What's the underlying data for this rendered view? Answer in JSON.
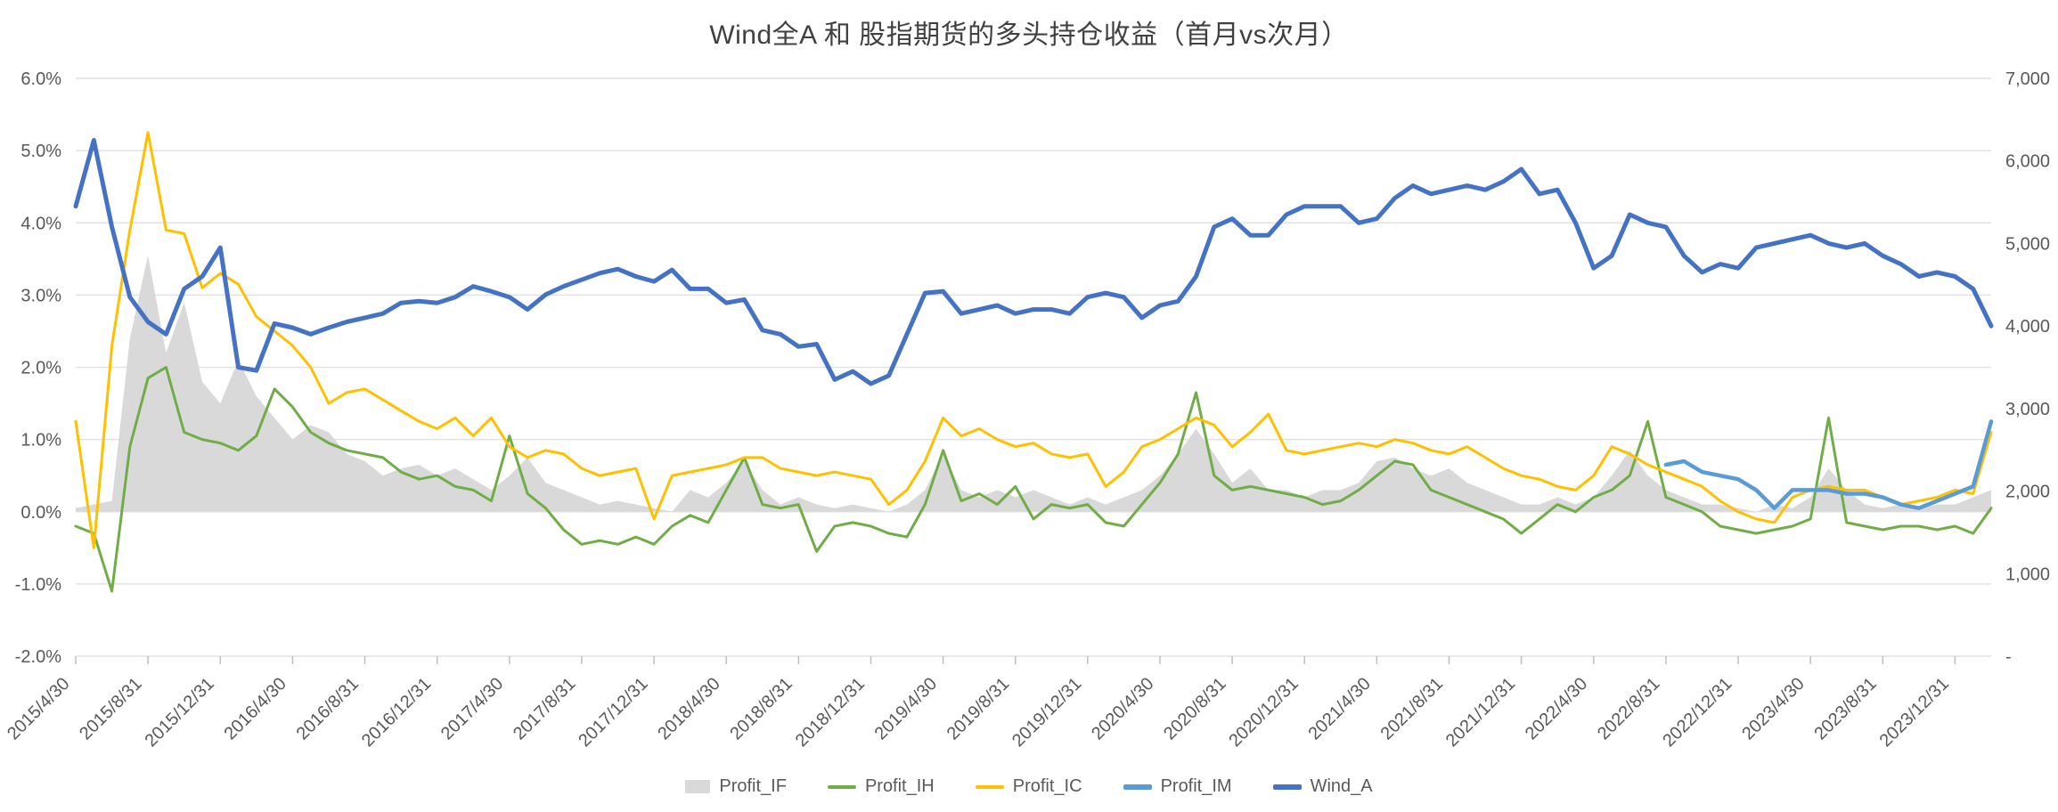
{
  "chart_data": {
    "type": "line",
    "title": "Wind全A 和 股指期货的多头持仓收益（首月vs次月）",
    "legend_position": "bottom",
    "grid": "horizontal",
    "left_axis": {
      "min": -2,
      "max": 6,
      "format": "percent",
      "tick_labels": [
        "6.0%",
        "5.0%",
        "4.0%",
        "3.0%",
        "2.0%",
        "1.0%",
        "0.0%",
        "-1.0%",
        "-2.0%"
      ],
      "tick_values": [
        6,
        5,
        4,
        3,
        2,
        1,
        0,
        -1,
        -2
      ]
    },
    "right_axis": {
      "min": 0,
      "max": 7000,
      "tick_labels": [
        "7,000",
        "6,000",
        "5,000",
        "4,000",
        "3,000",
        "2,000",
        "1,000",
        "-"
      ],
      "tick_values": [
        7000,
        6000,
        5000,
        4000,
        3000,
        2000,
        1000,
        0
      ]
    },
    "x_tick_labels": [
      "2015/4/30",
      "2015/8/31",
      "2015/12/31",
      "2016/4/30",
      "2016/8/31",
      "2016/12/31",
      "2017/4/30",
      "2017/8/31",
      "2017/12/31",
      "2018/4/30",
      "2018/8/31",
      "2018/12/31",
      "2019/4/30",
      "2019/8/31",
      "2019/12/31",
      "2020/4/30",
      "2020/8/31",
      "2020/12/31",
      "2021/4/30",
      "2021/8/31",
      "2021/12/31",
      "2022/4/30",
      "2022/8/31",
      "2022/12/31",
      "2023/4/30",
      "2023/8/31",
      "2023/12/31"
    ],
    "months": [
      "2015/4/30",
      "2015/5/31",
      "2015/6/30",
      "2015/7/31",
      "2015/8/31",
      "2015/9/30",
      "2015/10/31",
      "2015/11/30",
      "2015/12/31",
      "2016/1/31",
      "2016/2/29",
      "2016/3/31",
      "2016/4/30",
      "2016/5/31",
      "2016/6/30",
      "2016/7/31",
      "2016/8/31",
      "2016/9/30",
      "2016/10/31",
      "2016/11/30",
      "2016/12/31",
      "2017/1/31",
      "2017/2/28",
      "2017/3/31",
      "2017/4/30",
      "2017/5/31",
      "2017/6/30",
      "2017/7/31",
      "2017/8/31",
      "2017/9/30",
      "2017/10/31",
      "2017/11/30",
      "2017/12/31",
      "2018/1/31",
      "2018/2/28",
      "2018/3/31",
      "2018/4/30",
      "2018/5/31",
      "2018/6/30",
      "2018/7/31",
      "2018/8/31",
      "2018/9/30",
      "2018/10/31",
      "2018/11/30",
      "2018/12/31",
      "2019/1/31",
      "2019/2/28",
      "2019/3/31",
      "2019/4/30",
      "2019/5/31",
      "2019/6/30",
      "2019/7/31",
      "2019/8/31",
      "2019/9/30",
      "2019/10/31",
      "2019/11/30",
      "2019/12/31",
      "2020/1/31",
      "2020/2/29",
      "2020/3/31",
      "2020/4/30",
      "2020/5/31",
      "2020/6/30",
      "2020/7/31",
      "2020/8/31",
      "2020/9/30",
      "2020/10/31",
      "2020/11/30",
      "2020/12/31",
      "2021/1/31",
      "2021/2/28",
      "2021/3/31",
      "2021/4/30",
      "2021/5/31",
      "2021/6/30",
      "2021/7/31",
      "2021/8/31",
      "2021/9/30",
      "2021/10/31",
      "2021/11/30",
      "2021/12/31",
      "2022/1/31",
      "2022/2/28",
      "2022/3/31",
      "2022/4/30",
      "2022/5/31",
      "2022/6/30",
      "2022/7/31",
      "2022/8/31",
      "2022/9/30",
      "2022/10/31",
      "2022/11/30",
      "2022/12/31",
      "2023/1/31",
      "2023/2/28",
      "2023/3/31",
      "2023/4/30",
      "2023/5/31",
      "2023/6/30",
      "2023/7/31",
      "2023/8/31",
      "2023/9/30",
      "2023/10/31",
      "2023/11/30",
      "2023/12/31",
      "2024/1/31",
      "2024/2/29"
    ],
    "series": [
      {
        "name": "Profit_IF",
        "type": "area",
        "axis": "left",
        "color": "#d9d9d9",
        "start_index": 0,
        "values": [
          0.05,
          0.1,
          0.15,
          2.4,
          3.55,
          2.2,
          2.9,
          1.8,
          1.5,
          2.1,
          1.6,
          1.3,
          1.0,
          1.2,
          1.1,
          0.8,
          0.7,
          0.5,
          0.6,
          0.65,
          0.5,
          0.6,
          0.45,
          0.3,
          0.5,
          0.75,
          0.4,
          0.3,
          0.2,
          0.1,
          0.15,
          0.1,
          0.05,
          0.0,
          0.3,
          0.2,
          0.4,
          0.7,
          0.3,
          0.1,
          0.2,
          0.1,
          0.05,
          0.1,
          0.05,
          0.0,
          0.1,
          0.3,
          0.8,
          0.3,
          0.2,
          0.3,
          0.2,
          0.3,
          0.2,
          0.1,
          0.2,
          0.1,
          0.2,
          0.3,
          0.5,
          0.8,
          1.15,
          0.8,
          0.4,
          0.6,
          0.3,
          0.3,
          0.2,
          0.3,
          0.3,
          0.4,
          0.7,
          0.75,
          0.6,
          0.5,
          0.6,
          0.4,
          0.3,
          0.2,
          0.1,
          0.1,
          0.2,
          0.1,
          0.2,
          0.5,
          0.85,
          0.5,
          0.3,
          0.2,
          0.1,
          0.1,
          0.05,
          0.0,
          0.1,
          0.05,
          0.2,
          0.6,
          0.3,
          0.1,
          0.05,
          0.1,
          0.05,
          0.1,
          0.1,
          0.2,
          0.3
        ]
      },
      {
        "name": "Profit_IH",
        "type": "line",
        "axis": "left",
        "color": "#70ad47",
        "start_index": 0,
        "values": [
          -0.2,
          -0.3,
          -1.1,
          0.9,
          1.85,
          2.0,
          1.1,
          1.0,
          0.95,
          0.85,
          1.05,
          1.7,
          1.45,
          1.1,
          0.95,
          0.85,
          0.8,
          0.75,
          0.55,
          0.45,
          0.5,
          0.35,
          0.3,
          0.15,
          1.05,
          0.25,
          0.05,
          -0.25,
          -0.45,
          -0.4,
          -0.45,
          -0.35,
          -0.45,
          -0.2,
          -0.05,
          -0.15,
          0.3,
          0.75,
          0.1,
          0.05,
          0.1,
          -0.55,
          -0.2,
          -0.15,
          -0.2,
          -0.3,
          -0.35,
          0.1,
          0.85,
          0.15,
          0.25,
          0.1,
          0.35,
          -0.1,
          0.1,
          0.05,
          0.1,
          -0.15,
          -0.2,
          0.1,
          0.4,
          0.8,
          1.65,
          0.5,
          0.3,
          0.35,
          0.3,
          0.25,
          0.2,
          0.1,
          0.15,
          0.3,
          0.5,
          0.7,
          0.65,
          0.3,
          0.2,
          0.1,
          0.0,
          -0.1,
          -0.3,
          -0.1,
          0.1,
          0.0,
          0.2,
          0.3,
          0.5,
          1.25,
          0.2,
          0.1,
          0.0,
          -0.2,
          -0.25,
          -0.3,
          -0.25,
          -0.2,
          -0.1,
          1.3,
          -0.15,
          -0.2,
          -0.25,
          -0.2,
          -0.2,
          -0.25,
          -0.2,
          -0.3,
          0.05
        ]
      },
      {
        "name": "Profit_IC",
        "type": "line",
        "axis": "left",
        "color": "#ffc000",
        "start_index": 0,
        "values": [
          1.25,
          -0.5,
          2.3,
          3.9,
          5.25,
          3.9,
          3.85,
          3.1,
          3.3,
          3.15,
          2.7,
          2.5,
          2.3,
          2.0,
          1.5,
          1.65,
          1.7,
          1.55,
          1.4,
          1.25,
          1.15,
          1.3,
          1.05,
          1.3,
          0.9,
          0.75,
          0.85,
          0.8,
          0.6,
          0.5,
          0.55,
          0.6,
          -0.1,
          0.5,
          0.55,
          0.6,
          0.65,
          0.75,
          0.75,
          0.6,
          0.55,
          0.5,
          0.55,
          0.5,
          0.45,
          0.1,
          0.3,
          0.7,
          1.3,
          1.05,
          1.15,
          1.0,
          0.9,
          0.95,
          0.8,
          0.75,
          0.8,
          0.35,
          0.55,
          0.9,
          1.0,
          1.15,
          1.3,
          1.2,
          0.9,
          1.1,
          1.35,
          0.85,
          0.8,
          0.85,
          0.9,
          0.95,
          0.9,
          1.0,
          0.95,
          0.85,
          0.8,
          0.9,
          0.75,
          0.6,
          0.5,
          0.45,
          0.35,
          0.3,
          0.5,
          0.9,
          0.8,
          0.65,
          0.55,
          0.45,
          0.35,
          0.15,
          0.0,
          -0.1,
          -0.15,
          0.2,
          0.3,
          0.35,
          0.3,
          0.3,
          0.2,
          0.1,
          0.15,
          0.2,
          0.3,
          0.25,
          1.1
        ]
      },
      {
        "name": "Profit_IM",
        "type": "line",
        "axis": "left",
        "color": "#5b9bd5",
        "start_index": 88,
        "values": [
          0.65,
          0.7,
          0.55,
          0.5,
          0.45,
          0.3,
          0.05,
          0.3,
          0.3,
          0.3,
          0.25,
          0.25,
          0.2,
          0.1,
          0.05,
          0.15,
          0.25,
          0.35,
          1.25
        ]
      },
      {
        "name": "Wind_A",
        "type": "line",
        "axis": "right",
        "color": "#4472c4",
        "start_index": 0,
        "values": [
          5450,
          6250,
          5200,
          4350,
          4050,
          3900,
          4450,
          4600,
          4950,
          3500,
          3460,
          4030,
          3980,
          3900,
          3980,
          4050,
          4100,
          4150,
          4280,
          4300,
          4280,
          4350,
          4480,
          4420,
          4350,
          4200,
          4380,
          4480,
          4560,
          4640,
          4690,
          4600,
          4540,
          4680,
          4450,
          4450,
          4280,
          4320,
          3950,
          3900,
          3750,
          3780,
          3350,
          3450,
          3300,
          3400,
          3900,
          4400,
          4420,
          4150,
          4200,
          4250,
          4150,
          4200,
          4200,
          4150,
          4350,
          4400,
          4350,
          4100,
          4250,
          4300,
          4600,
          5200,
          5300,
          5100,
          5100,
          5350,
          5450,
          5450,
          5450,
          5250,
          5300,
          5550,
          5700,
          5600,
          5650,
          5700,
          5650,
          5750,
          5900,
          5600,
          5650,
          5250,
          4700,
          4850,
          5350,
          5250,
          5200,
          4850,
          4650,
          4750,
          4700,
          4950,
          5000,
          5050,
          5100,
          5000,
          4950,
          5000,
          4850,
          4750,
          4600,
          4650,
          4600,
          4450,
          4000
        ]
      }
    ]
  }
}
